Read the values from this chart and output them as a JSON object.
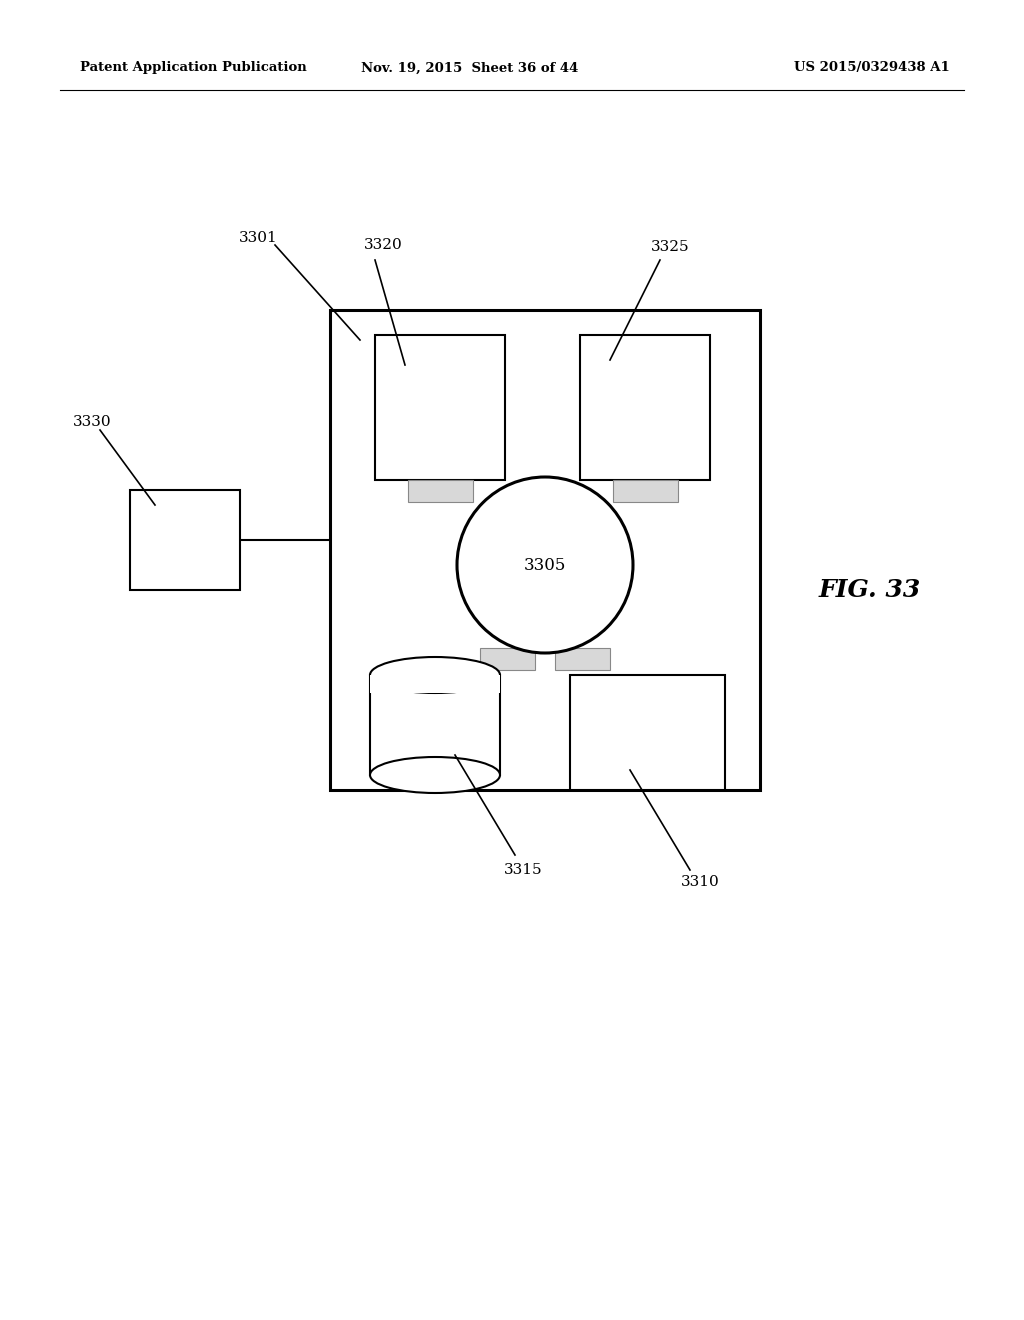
{
  "bg_color": "#ffffff",
  "header_left": "Patent Application Publication",
  "header_mid": "Nov. 19, 2015  Sheet 36 of 44",
  "header_right": "US 2015/0329438 A1",
  "fig_label": "FIG. 33",
  "line_color": "#000000",
  "lw": 1.5,
  "lw_thick": 2.2
}
